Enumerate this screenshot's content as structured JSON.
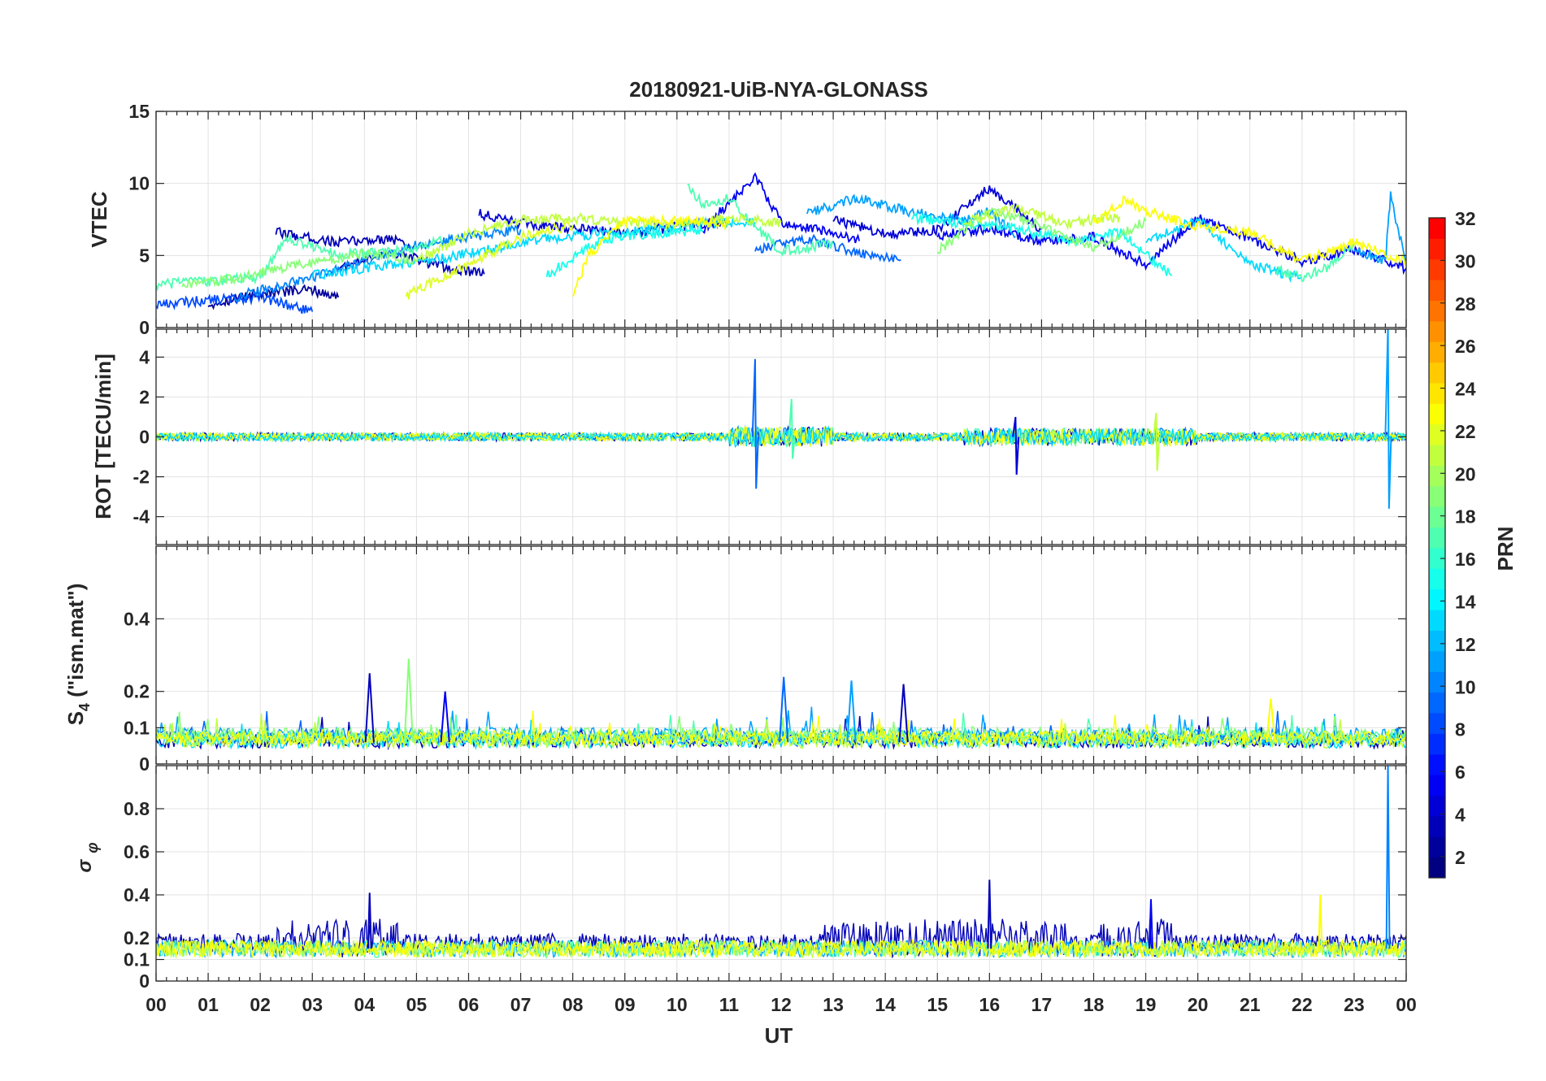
{
  "chart_data": {
    "title": "20180921-UiB-NYA-GLONASS",
    "xlabel": "UT",
    "x_ticks": [
      "00",
      "01",
      "02",
      "03",
      "04",
      "05",
      "06",
      "07",
      "08",
      "09",
      "10",
      "11",
      "12",
      "13",
      "14",
      "15",
      "16",
      "17",
      "18",
      "19",
      "20",
      "21",
      "22",
      "23",
      "00"
    ],
    "x_range_hours": [
      0,
      24
    ],
    "panels": [
      {
        "id": "vtec",
        "type": "line",
        "ylabel": "VTEC",
        "ylim": [
          0,
          15
        ],
        "yticks": [
          "0",
          "5",
          "10",
          "15"
        ],
        "grid": true,
        "series": [
          {
            "prn": 2,
            "x": [
              1.0,
              2.0,
              3.0,
              3.5
            ],
            "y": [
              1.6,
              2.4,
              2.6,
              2.1
            ]
          },
          {
            "prn": 3,
            "x": [
              2.3,
              3.5,
              4.5,
              5.0
            ],
            "y": [
              6.6,
              5.9,
              6.2,
              5.4
            ]
          },
          {
            "prn": 3,
            "x": [
              3.5,
              4.5,
              5.5,
              6.3
            ],
            "y": [
              4.1,
              5.3,
              4.2,
              3.7
            ]
          },
          {
            "prn": 4,
            "x": [
              6.2,
              7.0,
              8.0,
              9.0,
              10.0,
              11.0
            ],
            "y": [
              7.9,
              7.2,
              6.9,
              6.5,
              7.0,
              7.3
            ]
          },
          {
            "prn": 4,
            "x": [
              13.0,
              14.0,
              15.0,
              16.0,
              17.0
            ],
            "y": [
              7.5,
              6.5,
              6.8,
              9.7,
              6.8
            ]
          },
          {
            "prn": 5,
            "x": [
              10.5,
              11.5,
              12.0,
              13.0,
              13.5
            ],
            "y": [
              6.8,
              10.5,
              7.3,
              6.6,
              6.0
            ]
          },
          {
            "prn": 5,
            "x": [
              15.0,
              16.0,
              17.0,
              18.0,
              19.0,
              20.0,
              21.0,
              22.0,
              23.0,
              24.0
            ],
            "y": [
              6.4,
              6.9,
              6.0,
              6.3,
              4.4,
              7.6,
              6.2,
              4.6,
              5.4,
              4.1
            ]
          },
          {
            "prn": 8,
            "x": [
              0.0,
              1.0,
              2.0,
              3.0
            ],
            "y": [
              1.6,
              1.9,
              2.1,
              1.1
            ]
          },
          {
            "prn": 9,
            "x": [
              11.5,
              12.5,
              13.5,
              14.0,
              14.3
            ],
            "y": [
              5.4,
              6.2,
              5.2,
              4.9,
              4.7
            ]
          },
          {
            "prn": 10,
            "x": [
              1.5,
              3.0,
              4.0,
              5.0,
              6.0,
              7.0
            ],
            "y": [
              2.1,
              3.5,
              4.6,
              5.7,
              6.3,
              6.8
            ]
          },
          {
            "prn": 11,
            "x": [
              12.5,
              13.5,
              14.5,
              15.5,
              16.0,
              16.5
            ],
            "y": [
              8.0,
              9.0,
              8.0,
              7.5,
              8.1,
              6.3
            ]
          },
          {
            "prn": 11,
            "x": [
              23.0,
              23.6,
              23.7,
              24.0
            ],
            "y": [
              5.5,
              4.6,
              9.1,
              4.5
            ]
          },
          {
            "prn": 13,
            "x": [
              3.0,
              4.5,
              5.5,
              6.5,
              7.5,
              8.5,
              9.5,
              10.5,
              11.5
            ],
            "y": [
              3.6,
              4.4,
              4.8,
              5.5,
              6.2,
              6.5,
              6.8,
              7.2,
              7.3
            ]
          },
          {
            "prn": 13,
            "x": [
              19.0,
              20.0,
              21.0,
              22.0
            ],
            "y": [
              6.0,
              7.5,
              4.4,
              3.4
            ]
          },
          {
            "prn": 15,
            "x": [
              7.5,
              8.5,
              9.5,
              10.5
            ],
            "y": [
              3.6,
              6.0,
              6.5,
              6.7
            ]
          },
          {
            "prn": 15,
            "x": [
              14.5,
              15.5,
              16.5,
              17.5,
              18.5,
              19.5
            ],
            "y": [
              7.6,
              7.2,
              6.9,
              6.0,
              6.6,
              3.6
            ]
          },
          {
            "prn": 17,
            "x": [
              0.0,
              1.0,
              2.0,
              2.5,
              3.5,
              4.5,
              5.5
            ],
            "y": [
              3.0,
              3.2,
              3.5,
              6.2,
              5.1,
              5.2,
              6.0
            ]
          },
          {
            "prn": 17,
            "x": [
              10.2,
              10.5,
              11.0,
              11.5,
              12.0,
              13.0
            ],
            "y": [
              10.0,
              8.5,
              9.0,
              7.0,
              5.3,
              5.8
            ]
          },
          {
            "prn": 17,
            "x": [
              21.5,
              22.0,
              22.5,
              23.0
            ],
            "y": [
              4.0,
              3.5,
              4.2,
              5.8
            ]
          },
          {
            "prn": 19,
            "x": [
              0.5,
              1.5,
              2.5,
              4.0,
              5.0
            ],
            "y": [
              2.9,
              3.4,
              4.2,
              5.1,
              4.7
            ]
          },
          {
            "prn": 19,
            "x": [
              15.0,
              16.0,
              17.0,
              18.0,
              19.0
            ],
            "y": [
              5.3,
              8.1,
              7.1,
              5.5,
              7.4
            ]
          },
          {
            "prn": 21,
            "x": [
              5.0,
              6.0,
              7.0,
              8.0,
              9.0,
              10.0,
              11.0,
              12.0
            ],
            "y": [
              4.6,
              6.5,
              7.5,
              7.6,
              7.3,
              7.2,
              7.6,
              7.3
            ]
          },
          {
            "prn": 21,
            "x": [
              15.5,
              16.5,
              17.5,
              18.5
            ],
            "y": [
              7.3,
              8.3,
              7.2,
              7.7
            ]
          },
          {
            "prn": 22,
            "x": [
              4.8,
              6.0,
              7.0,
              8.0
            ],
            "y": [
              2.2,
              4.4,
              6.3,
              7.1
            ]
          },
          {
            "prn": 23,
            "x": [
              8.0,
              8.3,
              9.0,
              10.0,
              11.0
            ],
            "y": [
              2.2,
              5.0,
              7.4,
              7.4,
              7.2
            ]
          },
          {
            "prn": 23,
            "x": [
              18.0,
              18.6,
              19.0,
              20.0,
              21.0,
              22.0,
              23.0,
              24.0
            ],
            "y": [
              7.3,
              8.9,
              8.1,
              7.0,
              6.6,
              4.6,
              5.9,
              4.6
            ]
          }
        ]
      },
      {
        "id": "rot",
        "type": "line",
        "ylabel": "ROT [TECU/min]",
        "ylim": [
          -5.4,
          5.4
        ],
        "yticks": [
          "-4",
          "-2",
          "0",
          "2",
          "4"
        ],
        "grid": true,
        "background_noise_amplitude": 0.2,
        "spikes": [
          {
            "prn": 9,
            "x": 11.5,
            "ymax": 3.9,
            "ymin": -2.6
          },
          {
            "prn": 17,
            "x": 12.2,
            "ymax": 1.9,
            "ymin": -1.1
          },
          {
            "prn": 4,
            "x": 16.5,
            "ymax": 1.0,
            "ymin": -1.9
          },
          {
            "prn": 21,
            "x": 19.2,
            "ymax": 1.2,
            "ymin": -1.7
          },
          {
            "prn": 11,
            "x": 23.65,
            "ymax": 5.5,
            "ymin": -3.6
          }
        ]
      },
      {
        "id": "s4",
        "type": "line",
        "ylabel_main": "S",
        "ylabel_sub": "4",
        "ylabel_rest": " (\"ism.mat\")",
        "ylim": [
          0,
          0.6
        ],
        "yticks": [
          "0",
          "0.1",
          "0.2",
          "0.4"
        ],
        "grid": true,
        "baseline": 0.06,
        "spikes": [
          {
            "prn": 3,
            "x": 4.1,
            "y": 0.25
          },
          {
            "prn": 19,
            "x": 4.85,
            "y": 0.29
          },
          {
            "prn": 5,
            "x": 5.55,
            "y": 0.2
          },
          {
            "prn": 9,
            "x": 12.05,
            "y": 0.24
          },
          {
            "prn": 11,
            "x": 13.35,
            "y": 0.23
          },
          {
            "prn": 3,
            "x": 14.35,
            "y": 0.22
          },
          {
            "prn": 23,
            "x": 21.4,
            "y": 0.18
          }
        ]
      },
      {
        "id": "sigma_phi",
        "type": "line",
        "ylabel_main": "σ",
        "ylabel_sub": "φ",
        "ylim": [
          0,
          1.0
        ],
        "yticks": [
          "0",
          "0.1",
          "0.2",
          "0.4",
          "0.6",
          "0.8"
        ],
        "grid": true,
        "baseline": 0.15,
        "spikes": [
          {
            "prn": 3,
            "x": 4.1,
            "y": 0.41
          },
          {
            "prn": 3,
            "x": 16.0,
            "y": 0.47
          },
          {
            "prn": 5,
            "x": 19.1,
            "y": 0.38
          },
          {
            "prn": 23,
            "x": 22.35,
            "y": 0.4
          },
          {
            "prn": 10,
            "x": 23.65,
            "y": 1.0
          }
        ]
      }
    ],
    "colorbar": {
      "label": "PRN",
      "ticks": [
        "2",
        "4",
        "6",
        "8",
        "10",
        "12",
        "14",
        "16",
        "18",
        "20",
        "22",
        "24",
        "26",
        "28",
        "30",
        "32"
      ],
      "range": [
        1,
        32
      ],
      "colormap": "jet",
      "levels": 32
    }
  }
}
